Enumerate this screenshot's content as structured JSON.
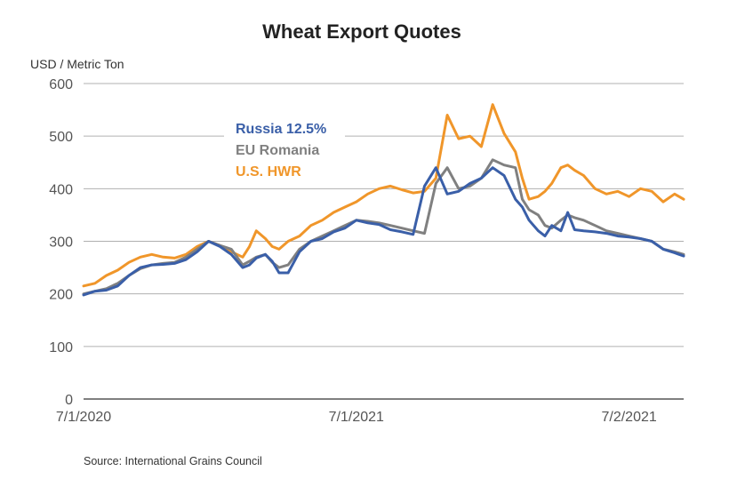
{
  "chart_data": {
    "type": "line",
    "title": "Wheat Export Quotes",
    "ylabel": "USD / Metric Ton",
    "xlabel": "",
    "ylim": [
      0,
      600
    ],
    "yticks": [
      0,
      100,
      200,
      300,
      400,
      500,
      600
    ],
    "xlim": [
      0,
      26.4
    ],
    "xticks": [
      {
        "label": "7/1/2020",
        "value": 0
      },
      {
        "label": "7/1/2021",
        "value": 12
      },
      {
        "label": "7/2/2021",
        "value": 24
      }
    ],
    "grid": true,
    "legend_position": "upper-left-inside",
    "series": [
      {
        "name": "U.S. HWR",
        "color": "#f0962a",
        "x": [
          0,
          0.5,
          1,
          1.5,
          2,
          2.5,
          3,
          3.5,
          4,
          4.5,
          5,
          5.5,
          6,
          6.5,
          7,
          7.3,
          7.6,
          8,
          8.3,
          8.6,
          9,
          9.5,
          10,
          10.5,
          11,
          11.5,
          12,
          12.5,
          13,
          13.5,
          14,
          14.5,
          15,
          15.5,
          16,
          16.5,
          17,
          17.5,
          18,
          18.5,
          19,
          19.3,
          19.6,
          20,
          20.3,
          20.6,
          21,
          21.3,
          21.6,
          22,
          22.5,
          23,
          23.5,
          24,
          24.5,
          25,
          25.5,
          26,
          26.4
        ],
        "values": [
          215,
          220,
          235,
          245,
          260,
          270,
          275,
          270,
          268,
          275,
          290,
          300,
          292,
          280,
          270,
          290,
          320,
          305,
          290,
          285,
          300,
          310,
          330,
          340,
          355,
          365,
          375,
          390,
          400,
          405,
          398,
          392,
          395,
          420,
          540,
          495,
          500,
          480,
          560,
          505,
          470,
          420,
          380,
          385,
          395,
          410,
          440,
          445,
          435,
          425,
          400,
          390,
          395,
          385,
          400,
          395,
          375,
          390,
          380
        ]
      },
      {
        "name": "EU Romania",
        "color": "#808080",
        "x": [
          0,
          0.5,
          1,
          1.5,
          2,
          2.5,
          3,
          3.5,
          4,
          4.5,
          5,
          5.5,
          6,
          6.5,
          7,
          7.3,
          7.6,
          8,
          8.3,
          8.6,
          9,
          9.5,
          10,
          10.5,
          11,
          11.5,
          12,
          12.5,
          13,
          13.5,
          14,
          14.5,
          15,
          15.5,
          16,
          16.5,
          17,
          17.5,
          18,
          18.5,
          19,
          19.3,
          19.6,
          20,
          20.3,
          20.6,
          21,
          21.3,
          21.6,
          22,
          22.5,
          23,
          23.5,
          24,
          24.5,
          25,
          25.5,
          26,
          26.4
        ],
        "values": [
          200,
          205,
          210,
          220,
          235,
          248,
          255,
          258,
          260,
          270,
          285,
          300,
          292,
          285,
          255,
          262,
          270,
          275,
          260,
          250,
          255,
          285,
          300,
          310,
          320,
          330,
          340,
          338,
          335,
          330,
          325,
          320,
          315,
          410,
          440,
          400,
          405,
          420,
          455,
          445,
          440,
          380,
          360,
          350,
          330,
          325,
          340,
          350,
          345,
          340,
          330,
          320,
          315,
          310,
          305,
          300,
          285,
          280,
          275
        ]
      },
      {
        "name": "Russia 12.5%",
        "color": "#3a5fa8",
        "x": [
          0,
          0.5,
          1,
          1.5,
          2,
          2.5,
          3,
          3.5,
          4,
          4.5,
          5,
          5.5,
          6,
          6.5,
          7,
          7.3,
          7.6,
          8,
          8.3,
          8.6,
          9,
          9.5,
          10,
          10.5,
          11,
          11.5,
          12,
          12.5,
          13,
          13.5,
          14,
          14.5,
          15,
          15.5,
          16,
          16.5,
          17,
          17.5,
          18,
          18.5,
          19,
          19.3,
          19.6,
          20,
          20.3,
          20.6,
          21,
          21.3,
          21.6,
          22,
          22.5,
          23,
          23.5,
          24,
          24.5,
          25,
          25.5,
          26,
          26.4
        ],
        "values": [
          198,
          205,
          207,
          215,
          235,
          250,
          255,
          256,
          258,
          265,
          280,
          300,
          290,
          275,
          250,
          255,
          268,
          275,
          262,
          240,
          240,
          280,
          300,
          305,
          318,
          325,
          340,
          335,
          332,
          322,
          318,
          313,
          405,
          440,
          390,
          395,
          410,
          420,
          440,
          425,
          380,
          365,
          340,
          320,
          310,
          330,
          320,
          355,
          322,
          320,
          318,
          315,
          310,
          308,
          305,
          300,
          285,
          278,
          272
        ]
      }
    ]
  },
  "source_text": "Source: International Grains Council"
}
